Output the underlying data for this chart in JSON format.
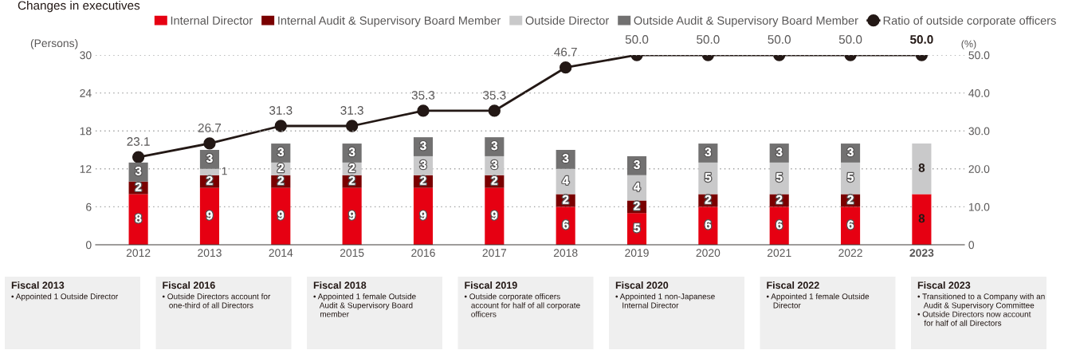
{
  "chart_data": {
    "type": "bar",
    "title": "Changes in executives",
    "ylabel": "(Persons)",
    "y2label": "(%)",
    "categories": [
      "2012",
      "2013",
      "2014",
      "2015",
      "2016",
      "2017",
      "2018",
      "2019",
      "2020",
      "2021",
      "2022",
      "2023"
    ],
    "stacked": true,
    "data_labels": true,
    "grid": "y",
    "legend": "top",
    "line_style": "solid",
    "marker": "circle",
    "ylim": [
      0,
      30
    ],
    "yticks": [
      0,
      6,
      12,
      18,
      24,
      30
    ],
    "y2lim": [
      0,
      50
    ],
    "y2ticks": [
      0,
      {
        "value": 10,
        "label": "10.0"
      },
      {
        "value": 20,
        "label": "20.0"
      },
      {
        "value": 30,
        "label": "30.0"
      },
      {
        "value": 40,
        "label": "40.0"
      },
      {
        "value": 50,
        "label": "50.0"
      }
    ],
    "series": [
      {
        "name": "Internal Director",
        "color": "#e60012",
        "values": [
          8,
          9,
          9,
          9,
          9,
          9,
          6,
          5,
          6,
          6,
          6,
          8
        ]
      },
      {
        "name": "Internal Audit & Supervisory Board Member",
        "color": "#7a0000",
        "values": [
          2,
          2,
          2,
          2,
          2,
          2,
          2,
          2,
          2,
          2,
          2,
          null
        ]
      },
      {
        "name": "Outside Director",
        "color": "#c9c9ca",
        "values": [
          null,
          1,
          2,
          2,
          3,
          3,
          4,
          4,
          5,
          5,
          5,
          8
        ]
      },
      {
        "name": "Outside Audit & Supervisory Board Member",
        "color": "#727171",
        "values": [
          3,
          3,
          3,
          3,
          3,
          3,
          3,
          3,
          3,
          3,
          3,
          null
        ]
      },
      {
        "name": "Ratio of outside corporate officers",
        "type": "line",
        "axis": "y2",
        "color": "#231815",
        "values": [
          23.1,
          26.7,
          31.3,
          31.3,
          35.3,
          35.3,
          46.7,
          50.0,
          50.0,
          50.0,
          50.0,
          50.0
        ],
        "value_labels": [
          "23.1",
          "26.7",
          "31.3",
          "31.3",
          "35.3",
          "35.3",
          "46.7",
          "50.0",
          "50.0",
          "50.0",
          "50.0",
          "50.0"
        ]
      }
    ],
    "annotations": [
      "Fiscal 2013\n• Appointed 1 Outside Director",
      "Fiscal 2016\n• Outside Directors account for\n   one-third of all Directors",
      "Fiscal 2018\n• Appointed 1 female Outside\n   Audit & Supervisory Board\n   member",
      "Fiscal 2019\n• Outside corporate officers\n   account for half of all corporate\n   officers",
      "Fiscal 2020\n• Appointed 1 non-Japanese\n   Internal Director",
      "Fiscal 2022\n• Appointed 1 female Outside\n   Director",
      "Fiscal 2023\n• Transitioned to a Company with an\n   Audit & Supervisory Committee\n• Outside Directors now account\n   for half of all Directors"
    ]
  }
}
